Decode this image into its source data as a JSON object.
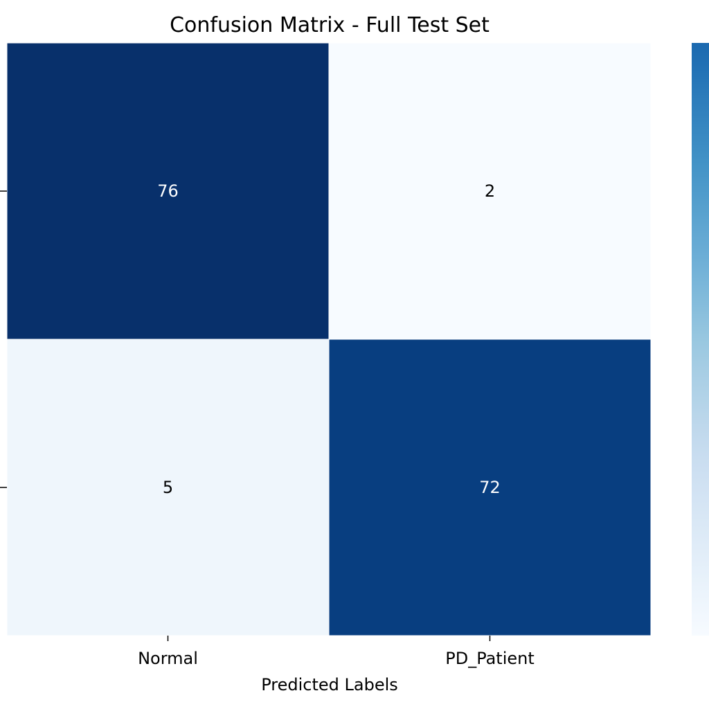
{
  "chart_data": {
    "type": "heatmap",
    "title": "Confusion Matrix - Full Test Set",
    "xlabel": "Predicted Labels",
    "ylabel": "",
    "x_categories": [
      "Normal",
      "PD_Patient"
    ],
    "y_categories": [
      "",
      ""
    ],
    "values": [
      [
        76,
        2
      ],
      [
        5,
        72
      ]
    ],
    "colormap": "Blues",
    "color_range": [
      2,
      76
    ],
    "colorbar": true
  }
}
